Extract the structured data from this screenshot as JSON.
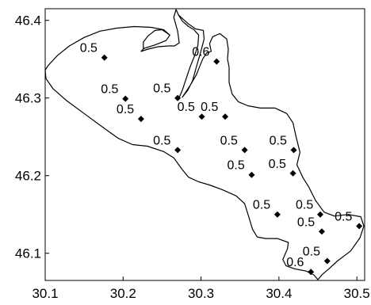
{
  "chart_data": {
    "type": "scatter",
    "title": "",
    "xlabel": "",
    "ylabel": "",
    "xlim": [
      30.1,
      30.51
    ],
    "ylim": [
      46.065,
      46.415
    ],
    "x_ticks": [
      "30.1",
      "30.2",
      "30.3",
      "30.4",
      "30.5"
    ],
    "y_ticks": [
      "46.4",
      "46.3",
      "46.2",
      "46.1"
    ],
    "grid": false,
    "legend": "none",
    "marker": "diamond",
    "marker_color": "#000000",
    "points": [
      {
        "x": 30.176,
        "y": 46.352,
        "label": "0.5"
      },
      {
        "x": 30.203,
        "y": 46.299,
        "label": "0.5"
      },
      {
        "x": 30.223,
        "y": 46.273,
        "label": "0.5"
      },
      {
        "x": 30.27,
        "y": 46.3,
        "label": "0.5"
      },
      {
        "x": 30.32,
        "y": 46.347,
        "label": "0.6"
      },
      {
        "x": 30.301,
        "y": 46.276,
        "label": "0.5"
      },
      {
        "x": 30.331,
        "y": 46.276,
        "label": "0.5"
      },
      {
        "x": 30.27,
        "y": 46.233,
        "label": "0.5"
      },
      {
        "x": 30.356,
        "y": 46.233,
        "label": "0.5"
      },
      {
        "x": 30.419,
        "y": 46.233,
        "label": "0.5"
      },
      {
        "x": 30.365,
        "y": 46.201,
        "label": "0.5"
      },
      {
        "x": 30.418,
        "y": 46.203,
        "label": "0.5"
      },
      {
        "x": 30.398,
        "y": 46.15,
        "label": "0.5"
      },
      {
        "x": 30.453,
        "y": 46.15,
        "label": "0.5"
      },
      {
        "x": 30.455,
        "y": 46.128,
        "label": "0.5"
      },
      {
        "x": 30.503,
        "y": 46.135,
        "label": "0.5"
      },
      {
        "x": 30.462,
        "y": 46.09,
        "label": "0.5"
      },
      {
        "x": 30.441,
        "y": 46.076,
        "label": "0.6"
      }
    ]
  },
  "map": {
    "outline_color": "#000000",
    "background": "#ffffff",
    "coastline": [
      [
        30.1,
        46.336
      ],
      [
        30.104,
        46.342
      ],
      [
        30.116,
        46.355
      ],
      [
        30.131,
        46.367
      ],
      [
        30.15,
        46.378
      ],
      [
        30.17,
        46.386
      ],
      [
        30.192,
        46.39
      ],
      [
        30.214,
        46.392
      ],
      [
        30.236,
        46.391
      ],
      [
        30.252,
        46.388
      ],
      [
        30.26,
        46.381
      ],
      [
        30.255,
        46.374
      ],
      [
        30.24,
        46.368
      ],
      [
        30.227,
        46.364
      ],
      [
        30.223,
        46.36
      ],
      [
        30.232,
        46.363
      ],
      [
        30.245,
        46.366
      ],
      [
        30.258,
        46.367
      ],
      [
        30.266,
        46.367
      ],
      [
        30.272,
        46.371
      ],
      [
        30.27,
        46.386
      ],
      [
        30.265,
        46.404
      ],
      [
        30.268,
        46.414
      ],
      [
        30.271,
        46.407
      ],
      [
        30.283,
        46.396
      ],
      [
        30.293,
        46.389
      ],
      [
        30.303,
        46.387
      ],
      [
        30.304,
        46.376
      ],
      [
        30.299,
        46.357
      ],
      [
        30.294,
        46.34
      ],
      [
        30.289,
        46.322
      ],
      [
        30.283,
        46.31
      ],
      [
        30.276,
        46.301
      ],
      [
        30.286,
        46.316
      ],
      [
        30.294,
        46.33
      ],
      [
        30.302,
        46.35
      ],
      [
        30.307,
        46.358
      ],
      [
        30.313,
        46.36
      ],
      [
        30.311,
        46.37
      ],
      [
        30.315,
        46.379
      ],
      [
        30.324,
        46.383
      ],
      [
        30.333,
        46.376
      ],
      [
        30.335,
        46.363
      ],
      [
        30.334,
        46.35
      ],
      [
        30.336,
        46.34
      ],
      [
        30.336,
        46.32
      ],
      [
        30.34,
        46.305
      ],
      [
        30.348,
        46.295
      ],
      [
        30.36,
        46.29
      ],
      [
        30.376,
        46.287
      ],
      [
        30.395,
        46.287
      ],
      [
        30.41,
        46.28
      ],
      [
        30.418,
        46.268
      ],
      [
        30.422,
        46.25
      ],
      [
        30.427,
        46.23
      ],
      [
        30.423,
        46.214
      ],
      [
        30.431,
        46.197
      ],
      [
        30.438,
        46.186
      ],
      [
        30.447,
        46.168
      ],
      [
        30.458,
        46.153
      ],
      [
        30.471,
        46.148
      ],
      [
        30.489,
        46.15
      ],
      [
        30.505,
        46.147
      ],
      [
        30.509,
        46.135
      ],
      [
        30.504,
        46.12
      ],
      [
        30.492,
        46.103
      ],
      [
        30.475,
        46.09
      ],
      [
        30.463,
        46.079
      ],
      [
        30.455,
        46.072
      ],
      [
        30.45,
        46.066
      ],
      [
        30.445,
        46.072
      ],
      [
        30.435,
        46.077
      ],
      [
        30.42,
        46.08
      ],
      [
        30.409,
        46.084
      ],
      [
        30.405,
        46.092
      ],
      [
        30.411,
        46.106
      ],
      [
        30.412,
        46.114
      ],
      [
        30.398,
        46.119
      ],
      [
        30.383,
        46.119
      ],
      [
        30.372,
        46.121
      ],
      [
        30.366,
        46.131
      ],
      [
        30.361,
        46.148
      ],
      [
        30.356,
        46.164
      ],
      [
        30.345,
        46.174
      ],
      [
        30.327,
        46.182
      ],
      [
        30.311,
        46.188
      ],
      [
        30.297,
        46.192
      ],
      [
        30.284,
        46.198
      ],
      [
        30.275,
        46.209
      ],
      [
        30.265,
        46.223
      ],
      [
        30.252,
        46.231
      ],
      [
        30.231,
        46.238
      ],
      [
        30.212,
        46.24
      ],
      [
        30.194,
        46.248
      ],
      [
        30.173,
        46.263
      ],
      [
        30.15,
        46.28
      ],
      [
        30.127,
        46.297
      ],
      [
        30.11,
        46.312
      ],
      [
        30.101,
        46.325
      ],
      [
        30.1,
        46.336
      ]
    ],
    "inlet": [
      [
        30.226,
        46.363
      ],
      [
        30.226,
        46.372
      ],
      [
        30.232,
        46.38
      ],
      [
        30.241,
        46.387
      ],
      [
        30.25,
        46.388
      ],
      [
        30.26,
        46.381
      ]
    ],
    "river_east": [
      [
        30.271,
        46.407
      ],
      [
        30.276,
        46.399
      ],
      [
        30.284,
        46.392
      ],
      [
        30.291,
        46.388
      ],
      [
        30.297,
        46.381
      ],
      [
        30.296,
        46.368
      ],
      [
        30.292,
        46.355
      ],
      [
        30.286,
        46.34
      ],
      [
        30.28,
        46.322
      ],
      [
        30.276,
        46.31
      ],
      [
        30.272,
        46.301
      ]
    ]
  }
}
